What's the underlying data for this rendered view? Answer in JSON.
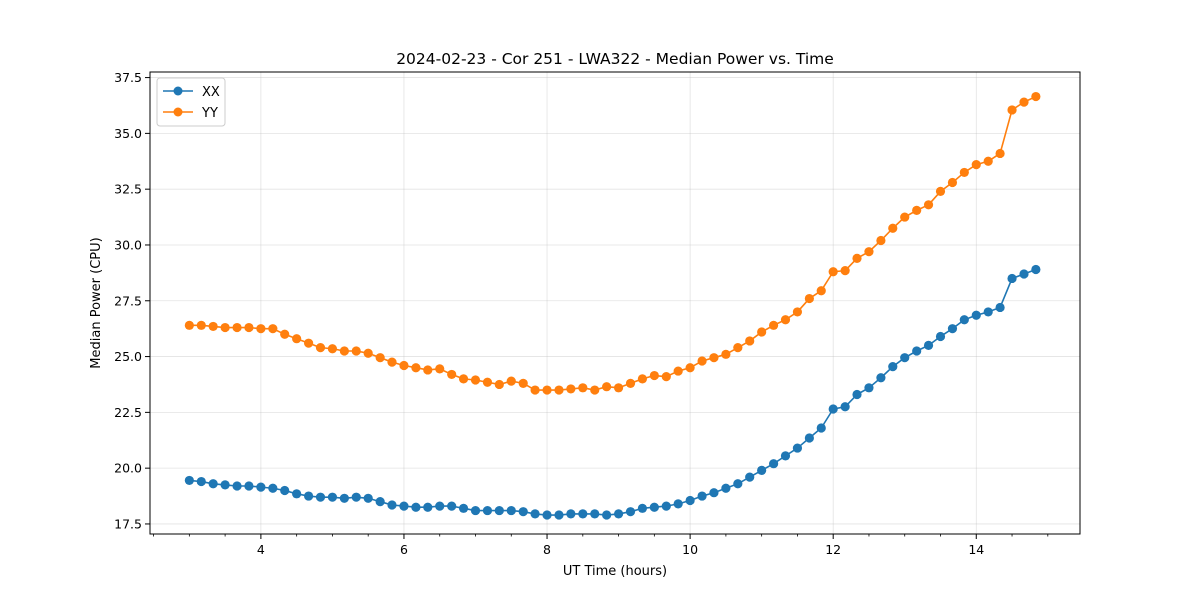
{
  "chart_data": {
    "type": "line",
    "title": "2024-02-23 - Cor 251 - LWA322 - Median Power vs. Time",
    "xlabel": "UT Time (hours)",
    "ylabel": "Median Power (CPU)",
    "xlim": [
      2.45,
      15.45
    ],
    "ylim": [
      17.05,
      37.75
    ],
    "xticks": [
      4,
      6,
      8,
      10,
      12,
      14
    ],
    "xtick_labels": [
      "4",
      "6",
      "8",
      "10",
      "12",
      "14"
    ],
    "yticks": [
      17.5,
      20.0,
      22.5,
      25.0,
      27.5,
      30.0,
      32.5,
      35.0,
      37.5
    ],
    "ytick_labels": [
      "17.5",
      "20.0",
      "22.5",
      "25.0",
      "27.5",
      "30.0",
      "32.5",
      "35.0",
      "37.5"
    ],
    "grid": true,
    "legend_position": "top-left",
    "x": [
      3.0,
      3.167,
      3.333,
      3.5,
      3.667,
      3.833,
      4.0,
      4.167,
      4.333,
      4.5,
      4.667,
      4.833,
      5.0,
      5.167,
      5.333,
      5.5,
      5.667,
      5.833,
      6.0,
      6.167,
      6.333,
      6.5,
      6.667,
      6.833,
      7.0,
      7.167,
      7.333,
      7.5,
      7.667,
      7.833,
      8.0,
      8.167,
      8.333,
      8.5,
      8.667,
      8.833,
      9.0,
      9.167,
      9.333,
      9.5,
      9.667,
      9.833,
      10.0,
      10.167,
      10.333,
      10.5,
      10.667,
      10.833,
      11.0,
      11.167,
      11.333,
      11.5,
      11.667,
      11.833,
      12.0,
      12.167,
      12.333,
      12.5,
      12.667,
      12.833,
      13.0,
      13.167,
      13.333,
      13.5,
      13.667,
      13.833,
      14.0,
      14.167,
      14.333,
      14.5,
      14.667,
      14.833
    ],
    "series": [
      {
        "name": "XX",
        "color": "#1f77b4",
        "values": [
          19.45,
          19.4,
          19.3,
          19.25,
          19.2,
          19.2,
          19.15,
          19.1,
          19.0,
          18.85,
          18.75,
          18.7,
          18.7,
          18.65,
          18.7,
          18.65,
          18.5,
          18.35,
          18.3,
          18.25,
          18.25,
          18.3,
          18.3,
          18.2,
          18.1,
          18.1,
          18.1,
          18.1,
          18.05,
          17.95,
          17.9,
          17.9,
          17.95,
          17.95,
          17.95,
          17.9,
          17.95,
          18.05,
          18.2,
          18.25,
          18.3,
          18.4,
          18.55,
          18.75,
          18.9,
          19.1,
          19.3,
          19.6,
          19.9,
          20.2,
          20.55,
          20.9,
          21.35,
          21.8,
          22.65,
          22.75,
          23.3,
          23.6,
          24.05,
          24.55,
          24.95,
          25.25,
          25.5,
          25.9,
          26.25,
          26.65,
          26.85,
          27.0,
          27.2,
          28.5,
          28.7,
          28.9
        ]
      },
      {
        "name": "YY",
        "color": "#ff7f0e",
        "values": [
          26.4,
          26.4,
          26.35,
          26.3,
          26.3,
          26.3,
          26.25,
          26.25,
          26.0,
          25.8,
          25.6,
          25.4,
          25.35,
          25.25,
          25.25,
          25.15,
          24.95,
          24.75,
          24.6,
          24.5,
          24.4,
          24.45,
          24.2,
          24.0,
          23.95,
          23.85,
          23.75,
          23.9,
          23.8,
          23.5,
          23.5,
          23.5,
          23.55,
          23.6,
          23.5,
          23.65,
          23.6,
          23.8,
          24.0,
          24.15,
          24.1,
          24.35,
          24.5,
          24.8,
          24.95,
          25.1,
          25.4,
          25.7,
          26.1,
          26.4,
          26.65,
          27.0,
          27.6,
          27.95,
          28.8,
          28.85,
          29.4,
          29.7,
          30.2,
          30.75,
          31.25,
          31.55,
          31.8,
          32.4,
          32.8,
          33.25,
          33.6,
          33.75,
          34.1,
          36.05,
          36.4,
          36.65
        ]
      }
    ]
  }
}
